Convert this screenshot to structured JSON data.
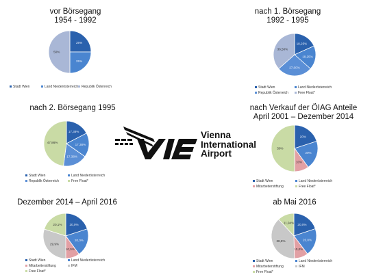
{
  "colors": {
    "stadt_wien": "#2a61ad",
    "land_noe": "#4a85d0",
    "republik": "#a9b7d6",
    "free_float": "#c9dba5",
    "mitarbeiter": "#e2a0a4",
    "ifm": "#c8c8c8"
  },
  "logo": {
    "mark": "VIE",
    "line1": "Vienna",
    "line2": "International",
    "line3": "Airport"
  },
  "chart_data": [
    {
      "type": "pie",
      "title_line1": "vor Börsegang",
      "title_line2": "1954 - 1992",
      "slices": [
        {
          "label": "25%",
          "value": 25,
          "color": "#2a61ad"
        },
        {
          "label": "25%",
          "value": 25,
          "color": "#4a85d0"
        },
        {
          "label": "50%",
          "value": 50,
          "color": "#a9b7d6"
        }
      ],
      "legend": [
        "Stadt Wien",
        "Land Niederösterreich",
        "Republik Österreich"
      ],
      "legend_colors": [
        "#2a61ad",
        "#4a85d0",
        "#a9b7d6"
      ]
    },
    {
      "type": "pie",
      "title_line1": "nach 1. Börsegang",
      "title_line2": "1992 - 1995",
      "slices": [
        {
          "label": "18,25%",
          "value": 18.25,
          "color": "#2a61ad"
        },
        {
          "label": "18,25%",
          "value": 18.25,
          "color": "#4a85d0"
        },
        {
          "label": "27,00%",
          "value": 27.0,
          "color": "#5b8fd6"
        },
        {
          "label": "36,50%",
          "value": 36.5,
          "color": "#a9b7d6"
        }
      ],
      "legend": [
        "Stadt Wien",
        "Land Niederösterreich",
        "Republik Österreich",
        "Free Float*"
      ],
      "legend_colors": [
        "#2a61ad",
        "#4a85d0",
        "#5b8fd6",
        "#a9b7d6"
      ]
    },
    {
      "type": "pie",
      "title_line1": "nach 2. Börsegang 1995",
      "title_line2": "",
      "slices": [
        {
          "label": "17,38%",
          "value": 17.38,
          "color": "#2a61ad"
        },
        {
          "label": "17,38%",
          "value": 17.38,
          "color": "#4a85d0"
        },
        {
          "label": "17,38%",
          "value": 17.38,
          "color": "#5b8fd6"
        },
        {
          "label": "47,86%",
          "value": 47.86,
          "color": "#c9dba5"
        }
      ],
      "legend": [
        "Stadt Wien",
        "Land Niederösterreich",
        "Republik Österreich",
        "Free Float*"
      ],
      "legend_colors": [
        "#2a61ad",
        "#4a85d0",
        "#5b8fd6",
        "#c9dba5"
      ]
    },
    {
      "type": "pie",
      "title_line1": "nach Verkauf der ÖIAG Anteile",
      "title_line2": "April 2001 – Dezember 2014",
      "slices": [
        {
          "label": "20%",
          "value": 20,
          "color": "#2a61ad"
        },
        {
          "label": "20%",
          "value": 20,
          "color": "#4a85d0"
        },
        {
          "label": "10%",
          "value": 10,
          "color": "#e2a0a4"
        },
        {
          "label": "50%",
          "value": 50,
          "color": "#c9dba5"
        }
      ],
      "legend": [
        "Stadt Wien",
        "Land Niederösterreich",
        "Mitarbeiterstiftung",
        "Free Float*"
      ],
      "legend_colors": [
        "#2a61ad",
        "#4a85d0",
        "#e2a0a4",
        "#c9dba5"
      ]
    },
    {
      "type": "pie",
      "title_line1": "Dezember 2014 – April 2016",
      "title_line2": "",
      "slices": [
        {
          "label": "20,0%",
          "value": 20.0,
          "color": "#2a61ad"
        },
        {
          "label": "20,0%",
          "value": 20.0,
          "color": "#4a85d0"
        },
        {
          "label": "10,0%",
          "value": 10.0,
          "color": "#e2a0a4"
        },
        {
          "label": "29,9%",
          "value": 29.9,
          "color": "#c8c8c8"
        },
        {
          "label": "20,1%",
          "value": 20.1,
          "color": "#c9dba5"
        }
      ],
      "legend": [
        "Stadt Wien",
        "Land Niederösterreich",
        "Mitarbeiterstiftung",
        "IFM",
        "Free Float*"
      ],
      "legend_colors": [
        "#2a61ad",
        "#4a85d0",
        "#e2a0a4",
        "#c8c8c8",
        "#c9dba5"
      ]
    },
    {
      "type": "pie",
      "title_line1": "ab Mai 2016",
      "title_line2": "",
      "slices": [
        {
          "label": "20,0%",
          "value": 20.0,
          "color": "#2a61ad"
        },
        {
          "label": "20,0%",
          "value": 20.0,
          "color": "#4a85d0"
        },
        {
          "label": "10,0%",
          "value": 10.0,
          "color": "#e2a0a4"
        },
        {
          "label": "38,8%",
          "value": 38.8,
          "color": "#c8c8c8"
        },
        {
          "label": "11,94%",
          "value": 11.94,
          "color": "#c9dba5"
        }
      ],
      "legend": [
        "Stadt Wien",
        "Land Niederösterreich",
        "Mitarbeiterstiftung",
        "IFM",
        "Free Float*"
      ],
      "legend_colors": [
        "#2a61ad",
        "#4a85d0",
        "#e2a0a4",
        "#c8c8c8",
        "#c9dba5"
      ]
    }
  ]
}
